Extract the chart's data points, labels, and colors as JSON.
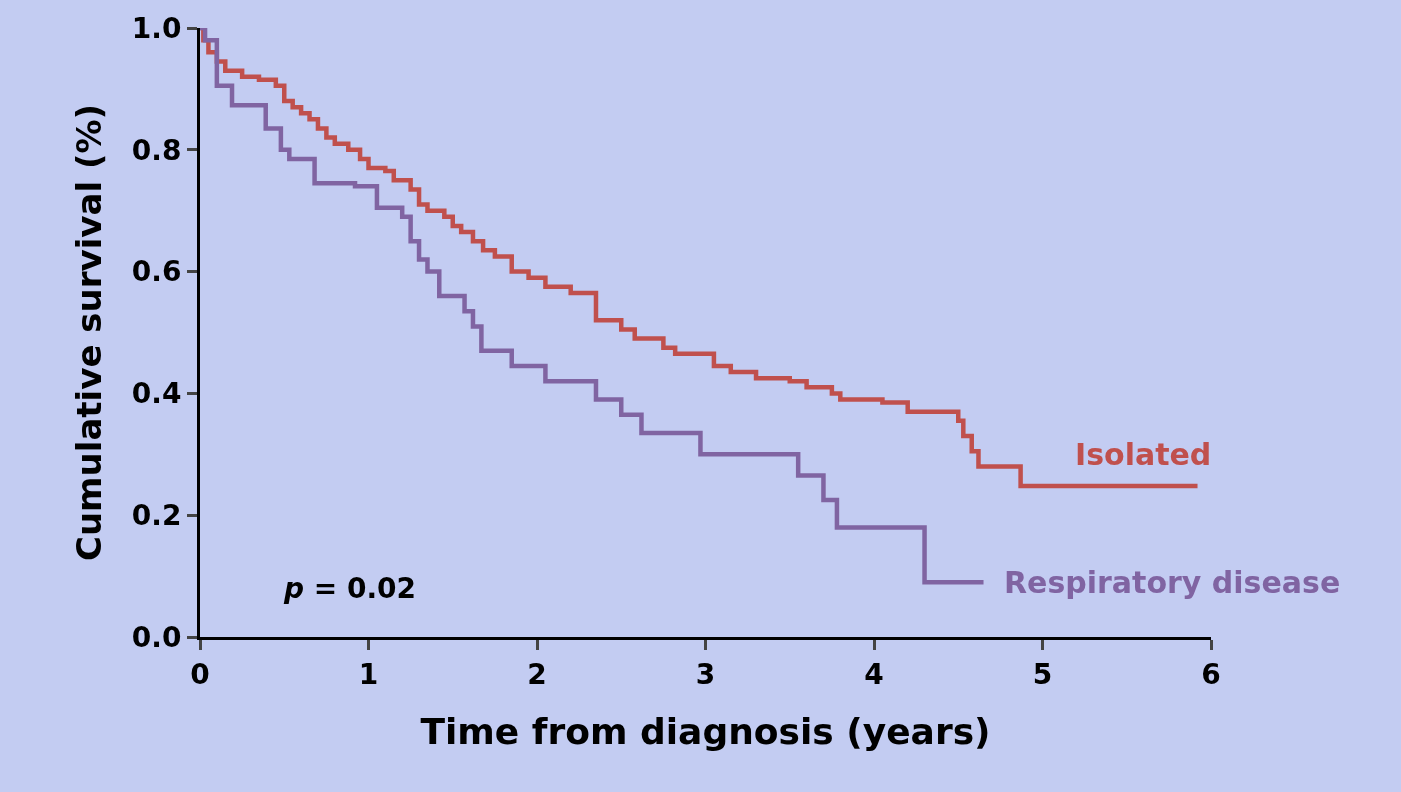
{
  "chart_data": {
    "type": "step",
    "xlabel": "Time from diagnosis (years)",
    "ylabel": "Cumulative survival (%)",
    "xlim": [
      0,
      6
    ],
    "xticks": [
      0,
      1,
      2,
      3,
      4,
      5,
      6
    ],
    "ylim": [
      0,
      1
    ],
    "yticks": [
      {
        "value": 0,
        "label": "0.0"
      },
      0.2,
      0.4,
      0.6,
      0.8,
      {
        "value": 1,
        "label": "1.0"
      }
    ],
    "grid": false,
    "legend": false,
    "marker": "none",
    "line_style": "solid",
    "annotations": [
      "p = 0.02"
    ],
    "series": [
      {
        "name": "Isolated",
        "color": "#c0504d",
        "x": [
          0,
          0.02,
          0.05,
          0.1,
          0.15,
          0.25,
          0.35,
          0.45,
          0.5,
          0.55,
          0.6,
          0.65,
          0.7,
          0.75,
          0.8,
          0.88,
          0.95,
          1.0,
          1.1,
          1.15,
          1.25,
          1.3,
          1.35,
          1.45,
          1.5,
          1.55,
          1.62,
          1.68,
          1.75,
          1.85,
          1.95,
          2.05,
          2.2,
          2.35,
          2.5,
          2.58,
          2.75,
          2.82,
          3.05,
          3.15,
          3.3,
          3.5,
          3.6,
          3.75,
          3.8,
          4.05,
          4.2,
          4.5,
          4.53,
          4.58,
          4.62,
          4.87,
          5.92
        ],
        "values": [
          1.0,
          0.98,
          0.96,
          0.945,
          0.93,
          0.92,
          0.915,
          0.905,
          0.88,
          0.87,
          0.86,
          0.85,
          0.835,
          0.82,
          0.81,
          0.8,
          0.785,
          0.77,
          0.765,
          0.75,
          0.735,
          0.71,
          0.7,
          0.69,
          0.675,
          0.665,
          0.65,
          0.635,
          0.625,
          0.6,
          0.59,
          0.575,
          0.565,
          0.52,
          0.505,
          0.49,
          0.475,
          0.465,
          0.445,
          0.435,
          0.425,
          0.42,
          0.41,
          0.4,
          0.39,
          0.385,
          0.37,
          0.355,
          0.33,
          0.305,
          0.28,
          0.248,
          0.248
        ]
      },
      {
        "name": "Respiratory disease",
        "color": "#8064a2",
        "x": [
          0,
          0.03,
          0.1,
          0.19,
          0.39,
          0.48,
          0.53,
          0.68,
          0.92,
          1.05,
          1.2,
          1.25,
          1.3,
          1.35,
          1.42,
          1.57,
          1.62,
          1.67,
          1.85,
          2.05,
          2.35,
          2.5,
          2.62,
          2.97,
          3.55,
          3.7,
          3.78,
          4.3,
          4.65
        ],
        "values": [
          1.0,
          0.98,
          0.905,
          0.873,
          0.835,
          0.8,
          0.785,
          0.745,
          0.74,
          0.705,
          0.69,
          0.65,
          0.62,
          0.6,
          0.56,
          0.535,
          0.51,
          0.47,
          0.445,
          0.42,
          0.39,
          0.365,
          0.335,
          0.3,
          0.265,
          0.225,
          0.18,
          0.09,
          0.09
        ]
      }
    ]
  }
}
